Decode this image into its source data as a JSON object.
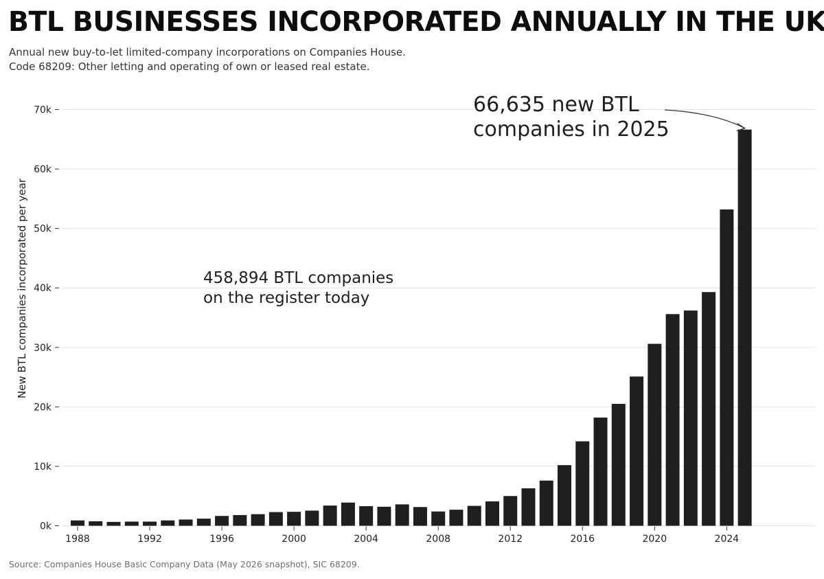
{
  "title": "BTL BUSINESSES INCORPORATED ANNUALLY IN THE UK",
  "subtitle": [
    "Annual new buy-to-let limited-company incorporations on Companies House.",
    "Code 68209: Other letting and operating of own or leased real estate."
  ],
  "source": "Source: Companies House Basic Company Data (May 2026 snapshot), SIC 68209.",
  "colors": {
    "bar": "#1f1f1f",
    "grid": "#e3e3e3",
    "text": "#1f1f1f"
  },
  "chart_data": {
    "type": "bar",
    "ylabel": "New BTL companies incorporated per year",
    "xlabel": "",
    "ylim": [
      0,
      70000
    ],
    "yticks": [
      0,
      10000,
      20000,
      30000,
      40000,
      50000,
      60000,
      70000
    ],
    "ytick_labels": [
      "0k",
      "10k",
      "20k",
      "30k",
      "40k",
      "50k",
      "60k",
      "70k"
    ],
    "xticks": [
      1988,
      1992,
      1996,
      2000,
      2004,
      2008,
      2012,
      2016,
      2020,
      2024
    ],
    "xtick_labels": [
      "1988",
      "1992",
      "1996",
      "2000",
      "2004",
      "2008",
      "2012",
      "2016",
      "2020",
      "2024"
    ],
    "grid": "horizontal",
    "categories": [
      1988,
      1989,
      1990,
      1991,
      1992,
      1993,
      1994,
      1995,
      1996,
      1997,
      1998,
      1999,
      2000,
      2001,
      2002,
      2003,
      2004,
      2005,
      2006,
      2007,
      2008,
      2009,
      2010,
      2011,
      2012,
      2013,
      2014,
      2015,
      2016,
      2017,
      2018,
      2019,
      2020,
      2021,
      2022,
      2023,
      2024,
      2025
    ],
    "values": [
      900,
      750,
      650,
      700,
      700,
      900,
      1050,
      1200,
      1650,
      1800,
      1950,
      2300,
      2350,
      2550,
      3400,
      3900,
      3300,
      3200,
      3600,
      3150,
      2400,
      2700,
      3350,
      4100,
      5000,
      6300,
      7600,
      10200,
      14200,
      18200,
      20500,
      25100,
      30600,
      35600,
      36200,
      39300,
      53200,
      66635
    ],
    "annotations": [
      {
        "lines": [
          "66,635 new BTL",
          "companies in 2025"
        ],
        "target_category": 2025,
        "target_value": 66635,
        "arrow": true
      },
      {
        "lines": [
          "458,894 BTL companies",
          "on the register today"
        ],
        "arrow": false
      }
    ]
  }
}
